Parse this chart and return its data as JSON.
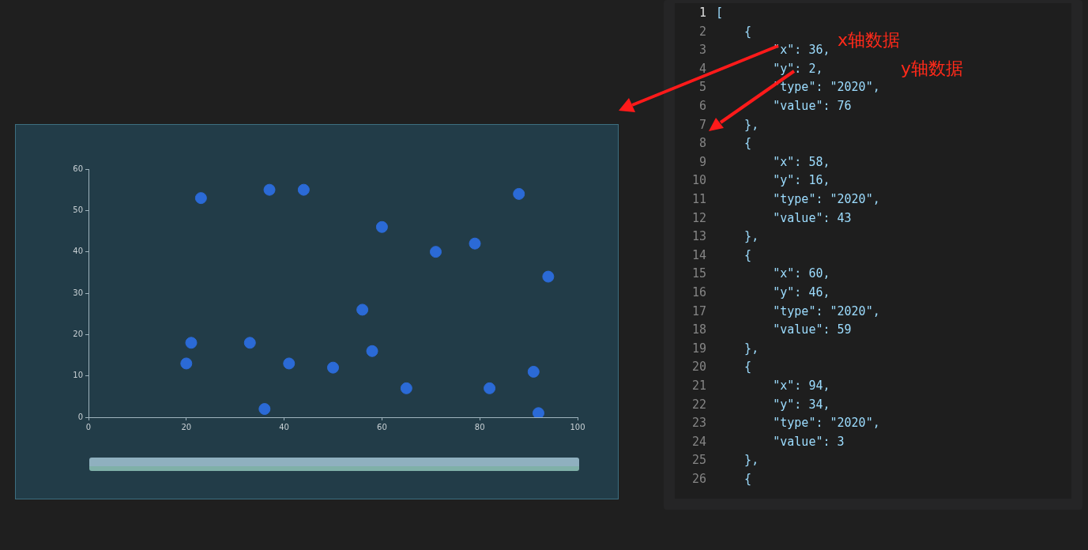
{
  "chart_data": {
    "type": "scatter",
    "x": [
      20,
      21,
      23,
      33,
      36,
      37,
      41,
      44,
      50,
      56,
      58,
      60,
      65,
      71,
      79,
      82,
      88,
      91,
      92,
      94
    ],
    "series": [
      {
        "color": "#2b6ad6",
        "values": [
          13,
          18,
          53,
          18,
          2,
          55,
          13,
          55,
          12,
          26,
          16,
          46,
          7,
          40,
          42,
          7,
          54,
          11,
          1,
          34
        ]
      }
    ],
    "xlim": [
      0,
      100
    ],
    "xticks": [
      0,
      20,
      40,
      60,
      80,
      100
    ],
    "ylim": [
      0,
      60
    ],
    "yticks": [
      0,
      10,
      20,
      30,
      40,
      50,
      60
    ],
    "grid": false,
    "legend": false,
    "marker": "circle",
    "annotations": [
      "1\t[",
      "2\t    {",
      "3\t        \"x\": 36,",
      "4\t        \"y\": 2,",
      "5\t        \"type\": \"2020\",",
      "6\t        \"value\": 76",
      "7\t    },",
      "8\t    {",
      "9\t        \"x\": 58,",
      "10\t        \"y\": 16,",
      "11\t        \"type\": \"2020\",",
      "12\t        \"value\": 43",
      "13\t    },",
      "14\t    {",
      "15\t        \"x\": 60,",
      "16\t        \"y\": 46,",
      "17\t        \"type\": \"2020\",",
      "18\t        \"value\": 59",
      "19\t    },",
      "20\t    {",
      "21\t        \"x\": 94,",
      "22\t        \"y\": 34,",
      "23\t        \"type\": \"2020\",",
      "24\t        \"value\": 3",
      "25\t    },",
      "26\t    {",
      "x轴数据",
      "y轴数据"
    ]
  }
}
